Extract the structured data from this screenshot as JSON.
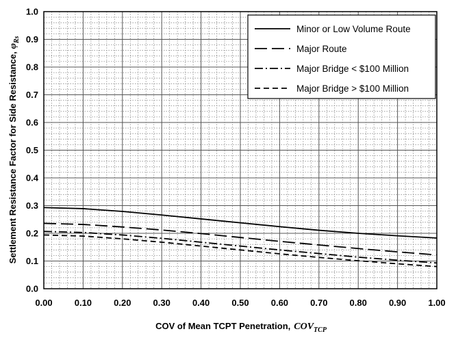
{
  "chart_data": {
    "type": "line",
    "xlabel": "COV of Mean TCPT Penetration,",
    "xlabel_symbol": "COV",
    "xlabel_subscript": "TCP",
    "ylabel": "Settlement Resistance Factor for Side Resistance,",
    "ylabel_symbol": "φ",
    "ylabel_subscript": "Rs",
    "xlim": [
      0,
      1
    ],
    "ylim": [
      0,
      1
    ],
    "x_ticks": [
      "0.00",
      "0.10",
      "0.20",
      "0.30",
      "0.40",
      "0.50",
      "0.60",
      "0.70",
      "0.80",
      "0.90",
      "1.00"
    ],
    "y_ticks": [
      "0.0",
      "0.1",
      "0.2",
      "0.3",
      "0.4",
      "0.5",
      "0.6",
      "0.7",
      "0.8",
      "0.9",
      "1.0"
    ],
    "grid": true,
    "legend_position": "top-right",
    "x": [
      0.0,
      0.1,
      0.2,
      0.3,
      0.4,
      0.5,
      0.6,
      0.7,
      0.8,
      0.9,
      1.0
    ],
    "series": [
      {
        "name": "Minor or Low Volume Route",
        "style": "solid",
        "values": [
          0.293,
          0.289,
          0.279,
          0.266,
          0.252,
          0.238,
          0.224,
          0.211,
          0.2,
          0.191,
          0.183
        ]
      },
      {
        "name": "Major Route",
        "style": "long-dash",
        "values": [
          0.236,
          0.232,
          0.223,
          0.212,
          0.199,
          0.185,
          0.171,
          0.158,
          0.145,
          0.133,
          0.122
        ]
      },
      {
        "name": "Major Bridge < $100 Million",
        "style": "dash-dot",
        "values": [
          0.207,
          0.203,
          0.194,
          0.182,
          0.168,
          0.154,
          0.14,
          0.127,
          0.114,
          0.103,
          0.093
        ]
      },
      {
        "name": "Major Bridge > $100 Million",
        "style": "short-dash",
        "values": [
          0.194,
          0.19,
          0.18,
          0.168,
          0.154,
          0.14,
          0.126,
          0.113,
          0.101,
          0.09,
          0.08
        ]
      }
    ]
  }
}
